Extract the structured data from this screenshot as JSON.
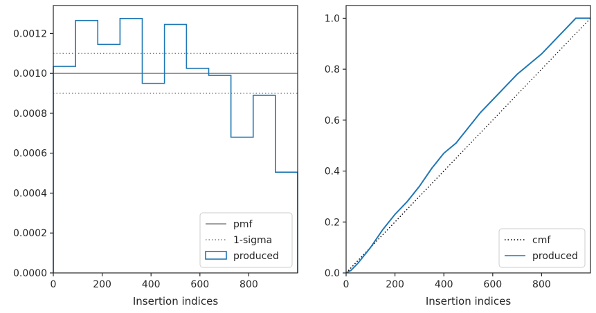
{
  "chart_data": [
    {
      "type": "histogram-step",
      "xlabel": "Insertion indices",
      "ylabel": "",
      "xlim": [
        0,
        1000
      ],
      "ylim": [
        0,
        0.00134
      ],
      "xticks": [
        0,
        200,
        400,
        600,
        800
      ],
      "xtick_labels": [
        "0",
        "200",
        "400",
        "600",
        "800"
      ],
      "yticks": [
        0,
        0.0002,
        0.0004,
        0.0006,
        0.0008,
        0.001,
        0.0012
      ],
      "ytick_labels": [
        "0.0000",
        "0.0002",
        "0.0004",
        "0.0006",
        "0.0008",
        "0.0010",
        "0.0012"
      ],
      "bin_edges": [
        0,
        91,
        182,
        273,
        364,
        455,
        545,
        636,
        727,
        818,
        909,
        1000
      ],
      "series": [
        {
          "name": "produced",
          "style": "step",
          "color": "#1f77b4",
          "values": [
            0.001035,
            0.001265,
            0.001145,
            0.001275,
            0.00095,
            0.001245,
            0.001025,
            0.00099,
            0.00068,
            0.00089,
            0.000505
          ]
        }
      ],
      "reference_lines": [
        {
          "name": "pmf",
          "style": "solid",
          "color": "#808080",
          "y": 0.001
        },
        {
          "name": "1-sigma",
          "style": "dotted",
          "color": "#808080",
          "y": 0.0011
        },
        {
          "name": "",
          "style": "dotted",
          "color": "#808080",
          "y": 0.0009
        }
      ],
      "legend": {
        "placement": "lower-right",
        "entries": [
          "pmf",
          "1-sigma",
          "produced"
        ]
      }
    },
    {
      "type": "line",
      "xlabel": "Insertion indices",
      "ylabel": "",
      "xlim": [
        0,
        1000
      ],
      "ylim": [
        0,
        1.05
      ],
      "xticks": [
        0,
        200,
        400,
        600,
        800
      ],
      "xtick_labels": [
        "0",
        "200",
        "400",
        "600",
        "800"
      ],
      "yticks": [
        0,
        0.2,
        0.4,
        0.6,
        0.8,
        1.0
      ],
      "ytick_labels": [
        "0.0",
        "0.2",
        "0.4",
        "0.6",
        "0.8",
        "1.0"
      ],
      "series": [
        {
          "name": "cmf",
          "style": "dotted",
          "color": "#000000",
          "x": [
            0,
            1000
          ],
          "y": [
            0,
            1.0
          ]
        },
        {
          "name": "produced",
          "style": "solid",
          "color": "#1f77b4",
          "x": [
            0,
            20,
            50,
            100,
            150,
            200,
            250,
            300,
            350,
            400,
            450,
            500,
            550,
            600,
            650,
            700,
            750,
            800,
            850,
            900,
            940,
            970,
            1000
          ],
          "y": [
            0,
            0.01,
            0.04,
            0.1,
            0.17,
            0.23,
            0.28,
            0.34,
            0.41,
            0.47,
            0.51,
            0.57,
            0.63,
            0.68,
            0.73,
            0.78,
            0.82,
            0.86,
            0.91,
            0.96,
            1.0,
            1.0,
            1.0
          ]
        }
      ],
      "legend": {
        "placement": "lower-right",
        "entries": [
          "cmf",
          "produced"
        ]
      }
    }
  ],
  "colors": {
    "produced": "#1f77b4",
    "reference": "#808080",
    "cmf": "#000000",
    "axis": "#262626"
  }
}
